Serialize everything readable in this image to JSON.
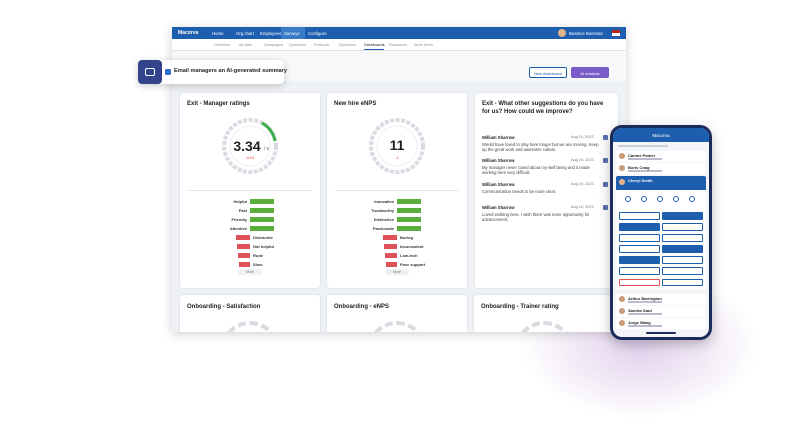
{
  "callout": {
    "text": "Email managers an AI-generated summary"
  },
  "app": {
    "brand": "Macorva",
    "nav": [
      "Home",
      "Org chart",
      "Employees",
      "Surveys",
      "Configure"
    ],
    "user": "Beatrice Bienman",
    "tabs": [
      "Overview",
      "All data",
      "Campaigns",
      "Questions",
      "Products",
      "Questions",
      "Dashboards",
      "Resources",
      "Work items"
    ],
    "actions": [
      "New dashboard",
      "AI analysis"
    ]
  },
  "cards": [
    {
      "title": "Exit - Manager ratings",
      "score": "3.34",
      "scale": "/ 5",
      "change": "-0.01",
      "positive": [
        "Helpful",
        "Fast",
        "Friendly",
        "Attentive"
      ],
      "negative": [
        "Distracted",
        "Not helpful",
        "Rude",
        "Slow"
      ],
      "more": "More"
    },
    {
      "title": "New hire eNPS",
      "score": "11",
      "change": "-1",
      "positive": [
        "Innovative",
        "Trustworthy",
        "Distinctive",
        "Passionate"
      ],
      "negative": [
        "Boring",
        "Inconsistent",
        "Low-tech",
        "Poor support"
      ],
      "more": "More"
    }
  ],
  "comments": {
    "title": "Exit - What other suggestions do you have for us? How could we improve?",
    "items": [
      {
        "author": "William Sharrow",
        "date": "Aug 10, 2023",
        "text": "Would have loved to stay here longer but we are moving. Keep up the great work and awesome culture."
      },
      {
        "author": "William Sharrow",
        "date": "Aug 10, 2023",
        "text": "My manager never cared about my well being and it made working here very difficult."
      },
      {
        "author": "William Sharrow",
        "date": "Aug 10, 2023",
        "text": "Communication needs to be more clear."
      },
      {
        "author": "William Sharrow",
        "date": "Aug 10, 2023",
        "text": "Loved working here. I wish there was more opportunity for advancement."
      }
    ]
  },
  "lower_cards": [
    "Onboarding - Satisfaction",
    "Onboarding - eNPS",
    "Onboarding - Trainer rating"
  ],
  "phone": {
    "brand": "Macorva",
    "people_top": [
      "Carime Parker",
      "Boris Craig"
    ],
    "expanded": "Cheryl Smith",
    "people_bottom": [
      "Arthur Barrington",
      "Sandra Gaut",
      "Jorge Wang"
    ]
  }
}
